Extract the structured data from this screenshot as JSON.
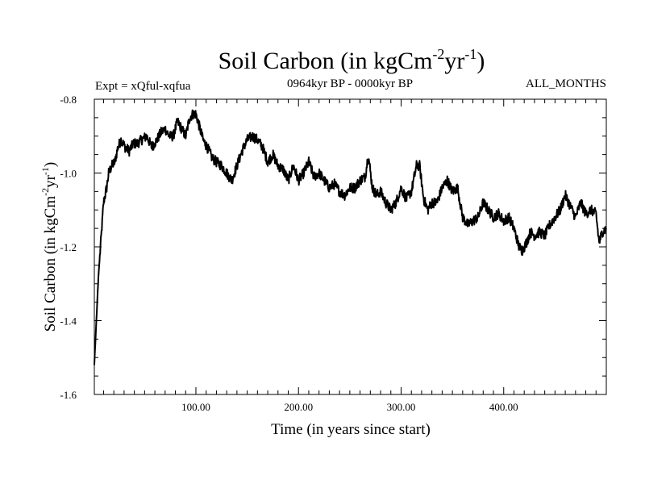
{
  "chart_data": {
    "type": "line",
    "title": {
      "base": "Soil Carbon (in kgCm",
      "exp1": "-2",
      "mid": "yr",
      "exp2": "-1",
      "close": ")"
    },
    "subtitle_left": "Expt = xQful-xqfua",
    "subtitle_center": "0964kyr BP - 0000kyr BP",
    "subtitle_right": "ALL_MONTHS",
    "xlabel": "Time (in years since start)",
    "ylabel": {
      "base": "Soil Carbon (in kgCm",
      "exp1": "-2",
      "mid": "yr",
      "exp2": "-1",
      "close": ")"
    },
    "xlim": [
      1,
      500
    ],
    "ylim": [
      -1.6,
      -0.8
    ],
    "x_ticks": [
      100,
      200,
      300,
      400
    ],
    "x_tick_labels": [
      "100.00",
      "200.00",
      "300.00",
      "400.00"
    ],
    "y_ticks": [
      -0.8,
      -1.0,
      -1.2,
      -1.4,
      -1.6
    ],
    "y_tick_labels": [
      "-0.8",
      "-1.0",
      "-1.2",
      "-1.4",
      "-1.6"
    ],
    "series": [
      {
        "name": "Soil Carbon",
        "x": [
          1,
          3,
          5,
          8,
          10,
          13,
          15,
          18,
          21,
          24,
          27,
          31,
          35,
          39,
          43,
          47,
          52,
          57,
          62,
          66,
          70,
          74,
          78,
          82,
          86,
          90,
          94,
          97,
          100,
          103,
          107,
          111,
          116,
          120,
          125,
          130,
          135,
          140,
          145,
          150,
          155,
          160,
          165,
          170,
          175,
          180,
          185,
          190,
          195,
          200,
          205,
          210,
          215,
          220,
          225,
          230,
          235,
          240,
          245,
          250,
          255,
          260,
          265,
          268,
          272,
          276,
          280,
          285,
          290,
          295,
          300,
          305,
          310,
          315,
          318,
          322,
          326,
          330,
          335,
          340,
          345,
          350,
          355,
          360,
          365,
          370,
          375,
          380,
          385,
          390,
          395,
          400,
          405,
          410,
          415,
          418,
          422,
          426,
          430,
          435,
          440,
          445,
          450,
          455,
          460,
          465,
          470,
          475,
          480,
          485,
          490,
          493,
          496,
          500
        ],
        "values": [
          -1.52,
          -1.4,
          -1.28,
          -1.16,
          -1.08,
          -1.04,
          -1.0,
          -0.98,
          -0.97,
          -0.93,
          -0.91,
          -0.93,
          -0.94,
          -0.92,
          -0.92,
          -0.91,
          -0.9,
          -0.93,
          -0.91,
          -0.89,
          -0.88,
          -0.9,
          -0.9,
          -0.86,
          -0.88,
          -0.9,
          -0.85,
          -0.84,
          -0.84,
          -0.87,
          -0.91,
          -0.93,
          -0.96,
          -0.97,
          -0.98,
          -1.0,
          -1.02,
          -0.98,
          -0.94,
          -0.91,
          -0.9,
          -0.91,
          -0.93,
          -0.97,
          -0.95,
          -0.98,
          -0.99,
          -1.02,
          -0.98,
          -1.02,
          -1.0,
          -0.97,
          -1.01,
          -1.0,
          -1.02,
          -1.04,
          -1.03,
          -1.05,
          -1.06,
          -1.04,
          -1.04,
          -1.02,
          -1.01,
          -0.95,
          -1.04,
          -1.06,
          -1.05,
          -1.08,
          -1.1,
          -1.08,
          -1.04,
          -1.07,
          -1.05,
          -0.98,
          -0.98,
          -1.07,
          -1.1,
          -1.08,
          -1.08,
          -1.04,
          -1.02,
          -1.05,
          -1.04,
          -1.12,
          -1.14,
          -1.13,
          -1.12,
          -1.08,
          -1.1,
          -1.12,
          -1.11,
          -1.13,
          -1.12,
          -1.15,
          -1.2,
          -1.21,
          -1.19,
          -1.16,
          -1.17,
          -1.16,
          -1.17,
          -1.14,
          -1.12,
          -1.1,
          -1.06,
          -1.09,
          -1.12,
          -1.08,
          -1.11,
          -1.1,
          -1.11,
          -1.19,
          -1.16,
          -1.15
        ]
      }
    ]
  }
}
